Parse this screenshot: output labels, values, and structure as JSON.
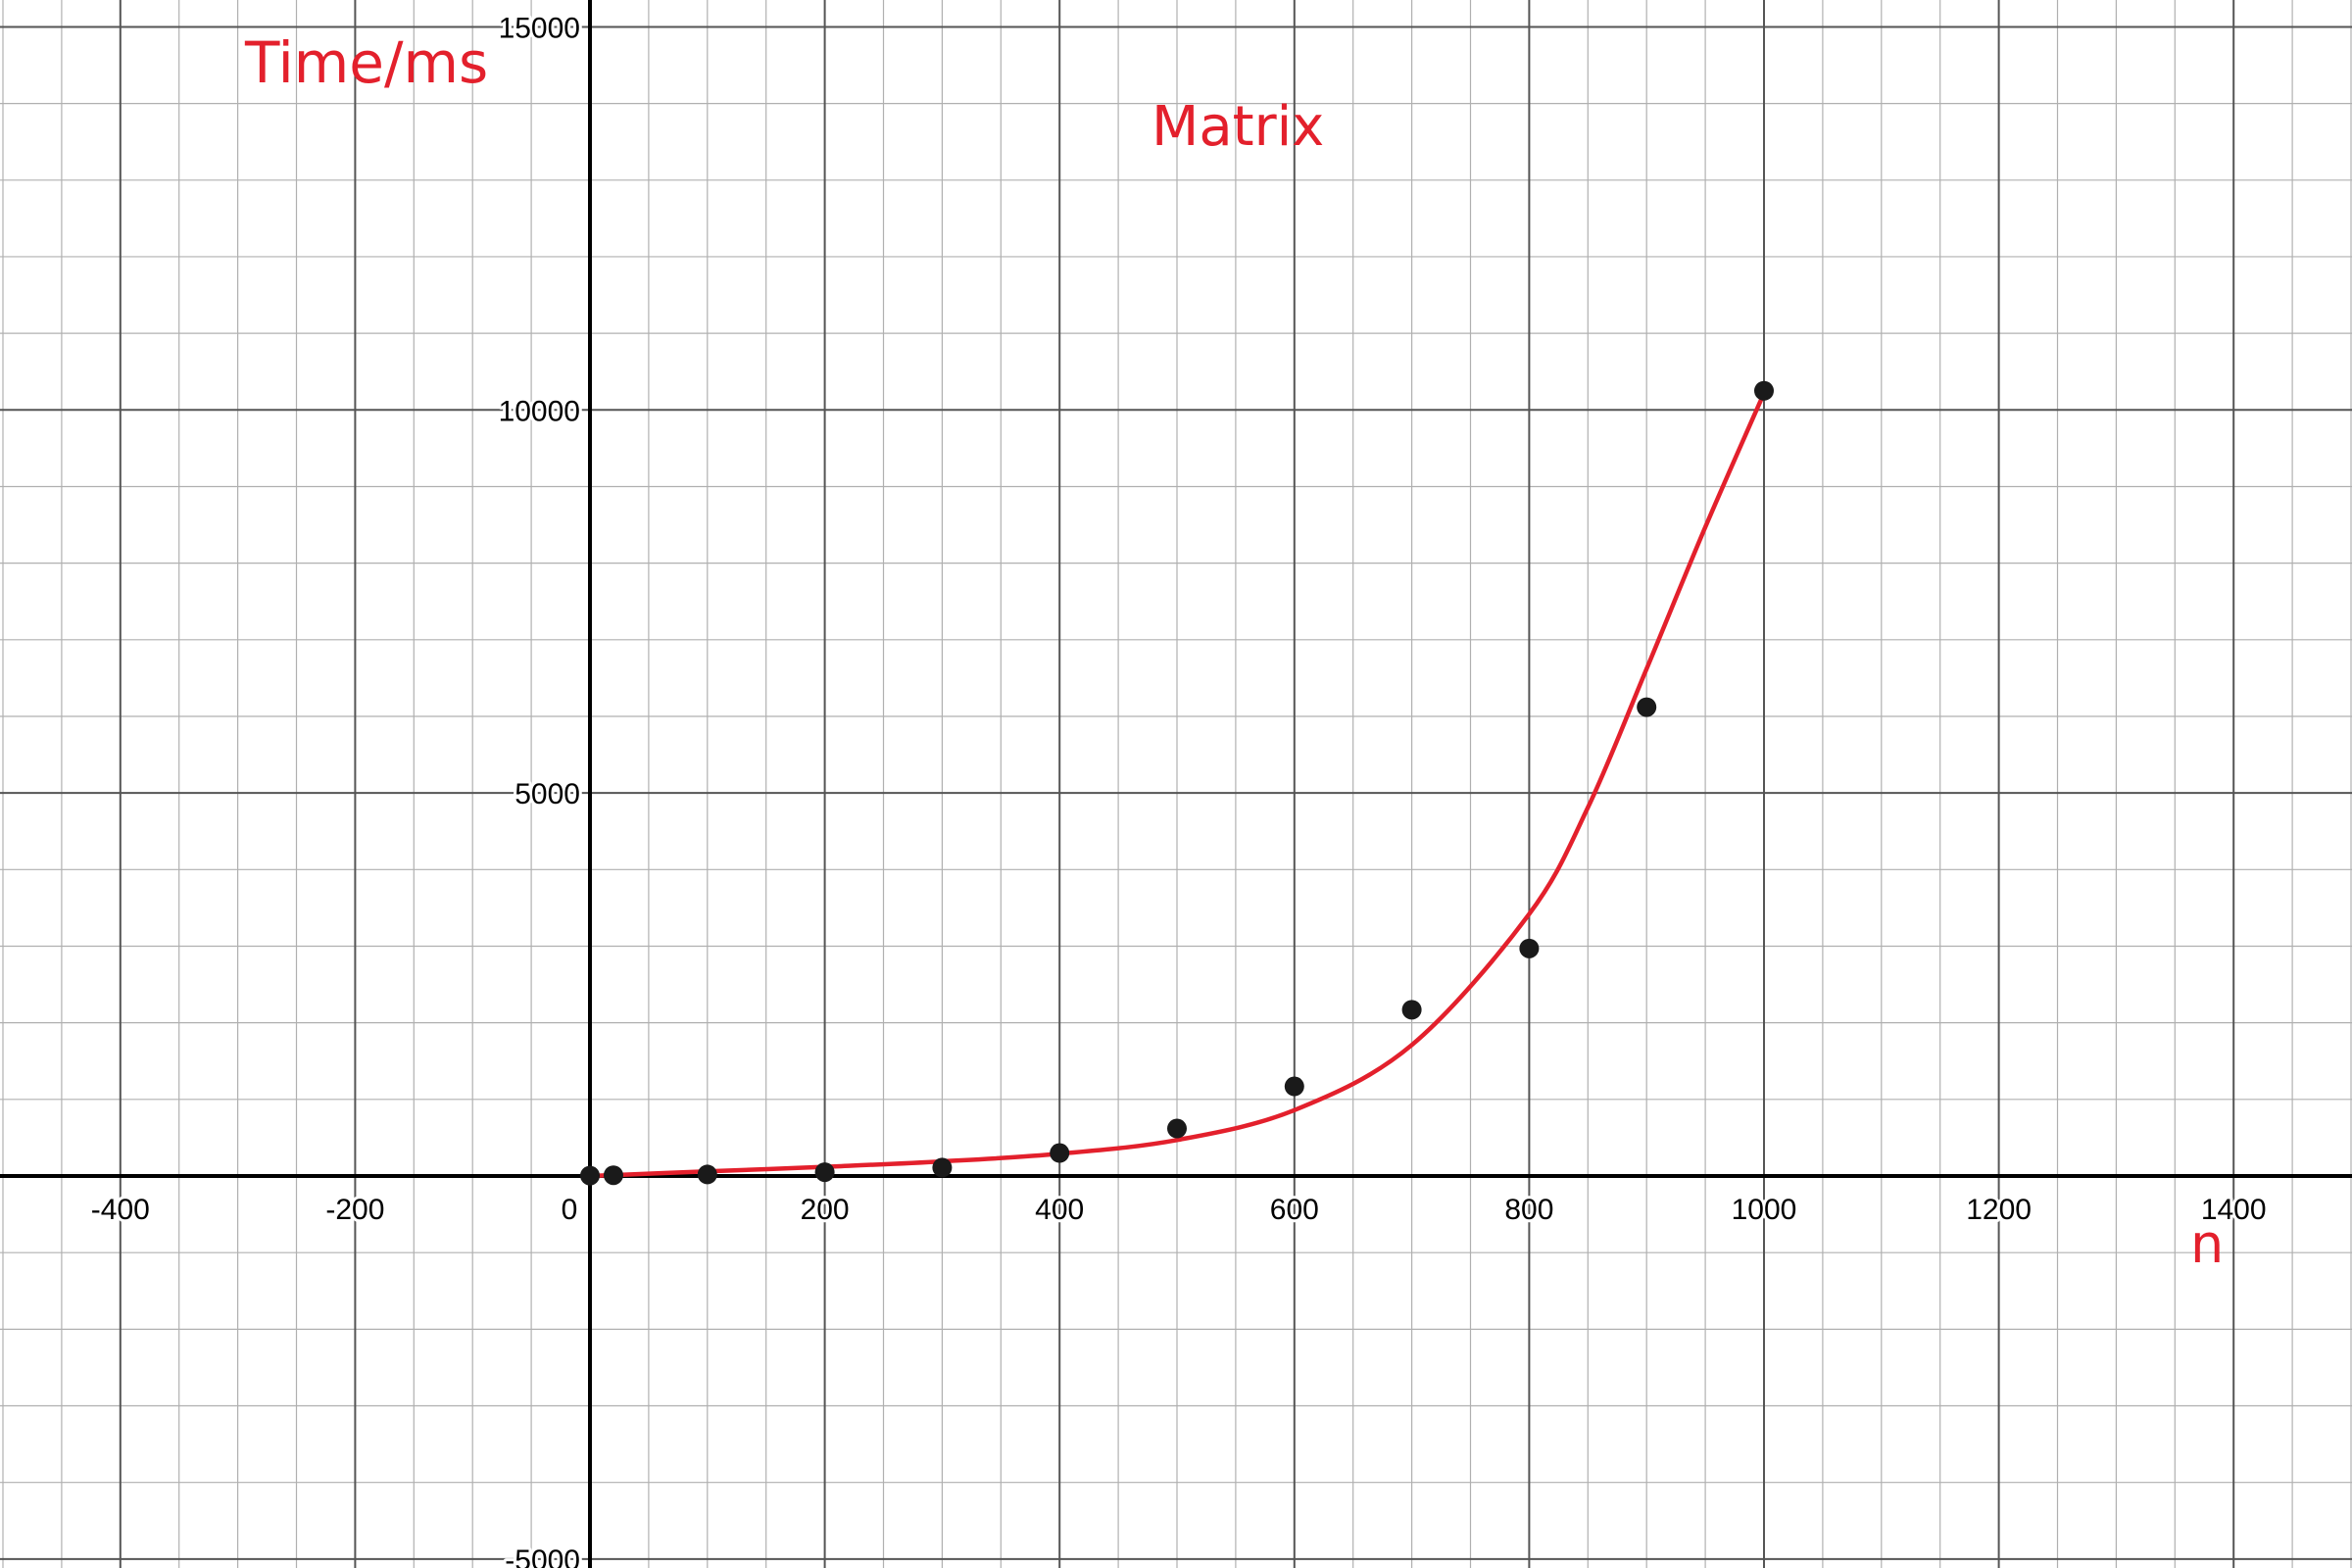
{
  "colors": {
    "fit_line": "#e3202c",
    "points": "#1a1a1a",
    "axis": "#000000",
    "major_grid": "#555555",
    "minor_grid": "#b0b0b0",
    "annotation_text": "#e3202c"
  },
  "chart_data": {
    "type": "scatter",
    "title": "Matrix",
    "xlabel": "n",
    "ylabel": "Time/ms",
    "xlim": [
      -500,
      1500
    ],
    "ylim": [
      -5000,
      15000
    ],
    "grid": true,
    "major_grid_step": {
      "x": 200,
      "y": 5000
    },
    "minor_grid_step": {
      "x": 50,
      "y": 1000
    },
    "x_ticks": [
      -400,
      -200,
      0,
      200,
      400,
      600,
      800,
      1000,
      1200,
      1400
    ],
    "x_tick_labels": [
      "-400",
      "-200",
      "0",
      "200",
      "400",
      "600",
      "800",
      "1000",
      "1200",
      "1400"
    ],
    "y_ticks": [
      15000,
      10000,
      5000,
      -5000
    ],
    "y_tick_labels": [
      "15000",
      "10000",
      "5000",
      "-5000"
    ],
    "series": [
      {
        "type": "scatter",
        "points": [
          {
            "x": 0,
            "y": 5
          },
          {
            "x": 20,
            "y": 10
          },
          {
            "x": 100,
            "y": 20
          },
          {
            "x": 200,
            "y": 50
          },
          {
            "x": 300,
            "y": 110
          },
          {
            "x": 400,
            "y": 300
          },
          {
            "x": 500,
            "y": 620
          },
          {
            "x": 600,
            "y": 1170
          },
          {
            "x": 700,
            "y": 2170
          },
          {
            "x": 800,
            "y": 2970
          },
          {
            "x": 900,
            "y": 6120
          },
          {
            "x": 1000,
            "y": 10250
          }
        ]
      },
      {
        "type": "line",
        "points": [
          {
            "x": 0,
            "y": 0
          },
          {
            "x": 100,
            "y": 60
          },
          {
            "x": 200,
            "y": 120
          },
          {
            "x": 300,
            "y": 190
          },
          {
            "x": 400,
            "y": 290
          },
          {
            "x": 500,
            "y": 470
          },
          {
            "x": 600,
            "y": 860
          },
          {
            "x": 700,
            "y": 1710
          },
          {
            "x": 800,
            "y": 3420
          },
          {
            "x": 850,
            "y": 4810
          },
          {
            "x": 900,
            "y": 6620
          },
          {
            "x": 950,
            "y": 8470
          },
          {
            "x": 1000,
            "y": 10220
          }
        ]
      }
    ]
  }
}
